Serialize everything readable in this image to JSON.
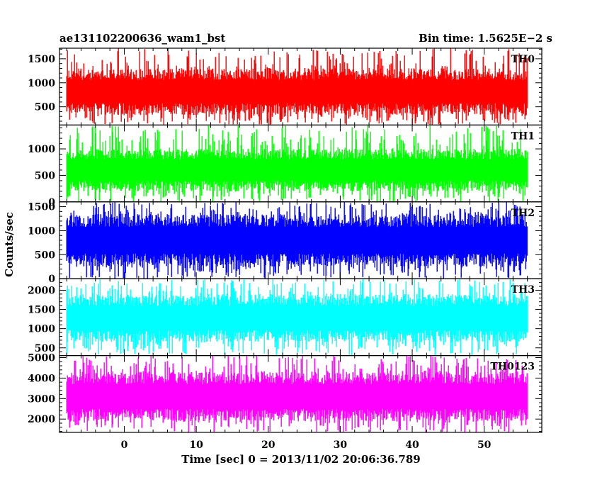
{
  "chart_data": {
    "type": "line",
    "title_left": "ae131102200636_wam1_bst",
    "title_right": "Bin time: 1.5625E−2 s",
    "xlabel": "Time [sec] 0 = 2013/11/02 20:06:36.789",
    "ylabel": "Counts/sec",
    "xlim": [
      -9,
      58
    ],
    "xticks": [
      "0",
      "10",
      "20",
      "30",
      "40",
      "50"
    ],
    "x_data_range": [
      -8,
      56
    ],
    "panels": [
      {
        "name": "TH0",
        "color": "#ff0000",
        "ylim": [
          120,
          1720
        ],
        "yticks": [
          "500",
          "1000",
          "1500"
        ],
        "typical_range": [
          330,
          1300
        ],
        "spike_max": 1720,
        "spike_min": 120
      },
      {
        "name": "TH1",
        "color": "#00ff00",
        "ylim": [
          0,
          1450
        ],
        "yticks": [
          "0",
          "500",
          "1000"
        ],
        "typical_range": [
          200,
          1000
        ],
        "spike_max": 1450,
        "spike_min": 0
      },
      {
        "name": "TH2",
        "color": "#0000ff",
        "ylim": [
          0,
          1600
        ],
        "yticks": [
          "0",
          "500",
          "1000",
          "1500"
        ],
        "typical_range": [
          250,
          1350
        ],
        "spike_max": 1600,
        "spike_min": 0
      },
      {
        "name": "TH3",
        "color": "#00ffff",
        "ylim": [
          300,
          2300
        ],
        "yticks": [
          "500",
          "1000",
          "1500",
          "2000"
        ],
        "typical_range": [
          650,
          1900
        ],
        "spike_max": 2300,
        "spike_min": 300
      },
      {
        "name": "TH0123",
        "color": "#ff00ff",
        "ylim": [
          1350,
          5100
        ],
        "yticks": [
          "2000",
          "3000",
          "4000",
          "5000"
        ],
        "typical_range": [
          1900,
          4300
        ],
        "spike_max": 5100,
        "spike_min": 1350
      }
    ]
  }
}
